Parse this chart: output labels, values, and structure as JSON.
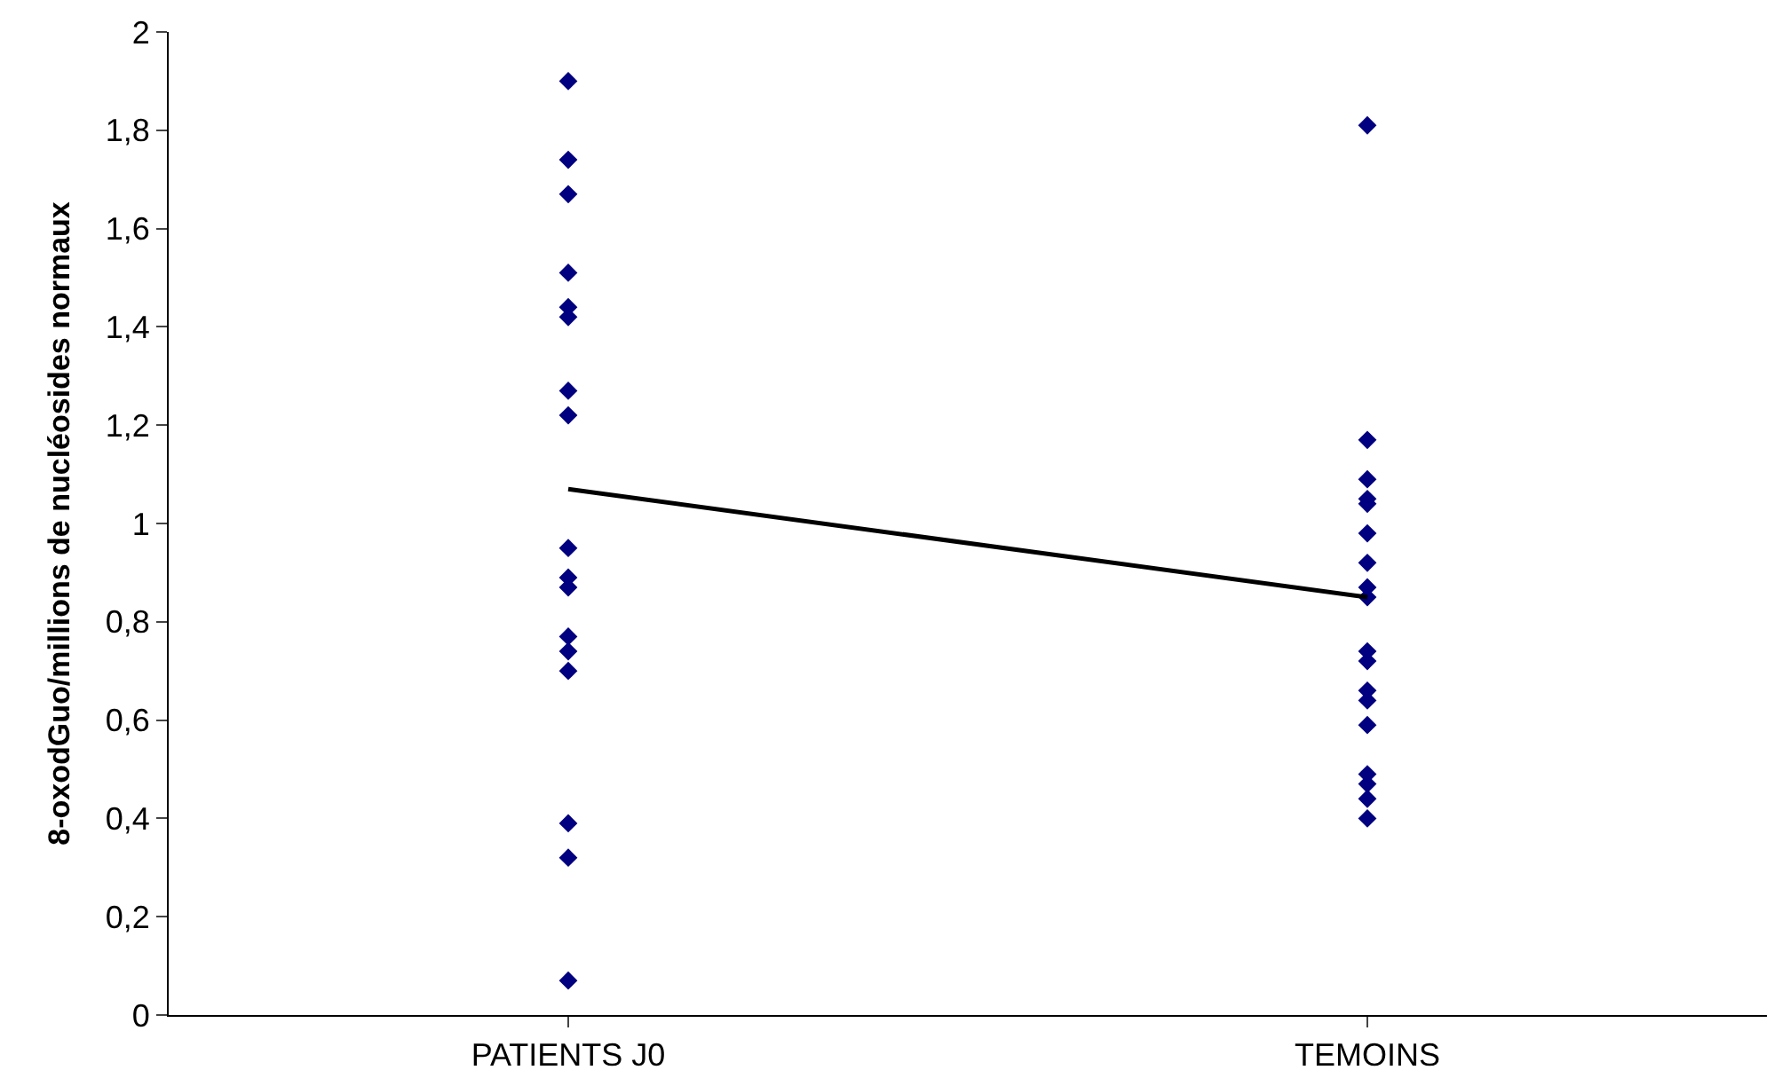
{
  "chart_data": {
    "type": "scatter",
    "ylabel": "8-oxodGuo/millions de nucléosides normaux",
    "categories": [
      "PATIENTS J0",
      "TEMOINS"
    ],
    "series": [
      {
        "color": "#000080",
        "marker": "diamond",
        "x": [
          "PATIENTS J0",
          "PATIENTS J0",
          "PATIENTS J0",
          "PATIENTS J0",
          "PATIENTS J0",
          "PATIENTS J0",
          "PATIENTS J0",
          "PATIENTS J0",
          "PATIENTS J0",
          "PATIENTS J0",
          "PATIENTS J0",
          "PATIENTS J0",
          "PATIENTS J0",
          "PATIENTS J0",
          "PATIENTS J0",
          "PATIENTS J0",
          "PATIENTS J0"
        ],
        "values": [
          1.9,
          1.74,
          1.67,
          1.51,
          1.44,
          1.42,
          1.27,
          1.22,
          0.95,
          0.89,
          0.87,
          0.77,
          0.74,
          0.7,
          0.39,
          0.32,
          0.07
        ]
      },
      {
        "color": "#000080",
        "marker": "diamond",
        "x": [
          "TEMOINS",
          "TEMOINS",
          "TEMOINS",
          "TEMOINS",
          "TEMOINS",
          "TEMOINS",
          "TEMOINS",
          "TEMOINS",
          "TEMOINS",
          "TEMOINS",
          "TEMOINS",
          "TEMOINS",
          "TEMOINS",
          "TEMOINS",
          "TEMOINS",
          "TEMOINS",
          "TEMOINS",
          "TEMOINS"
        ],
        "values": [
          1.81,
          1.17,
          1.09,
          1.05,
          1.04,
          0.98,
          0.92,
          0.87,
          0.85,
          0.74,
          0.72,
          0.66,
          0.64,
          0.59,
          0.49,
          0.47,
          0.44,
          0.4
        ]
      },
      {
        "type": "line",
        "color": "#000000",
        "marker": "none",
        "line_style": "solid",
        "x": [
          "PATIENTS J0",
          "TEMOINS"
        ],
        "values": [
          1.07,
          0.85
        ]
      }
    ],
    "ylim": [
      0,
      2
    ],
    "yticks": [
      {
        "value": 0,
        "label": "0"
      },
      {
        "value": 0.2,
        "label": "0,2"
      },
      {
        "value": 0.4,
        "label": "0,4"
      },
      {
        "value": 0.6,
        "label": "0,6"
      },
      {
        "value": 0.8,
        "label": "0,8"
      },
      {
        "value": 1,
        "label": "1"
      },
      {
        "value": 1.2,
        "label": "1,2"
      },
      {
        "value": 1.4,
        "label": "1,4"
      },
      {
        "value": 1.6,
        "label": "1,6"
      },
      {
        "value": 1.8,
        "label": "1,8"
      },
      {
        "value": 2,
        "label": "2"
      }
    ],
    "legend": false
  }
}
